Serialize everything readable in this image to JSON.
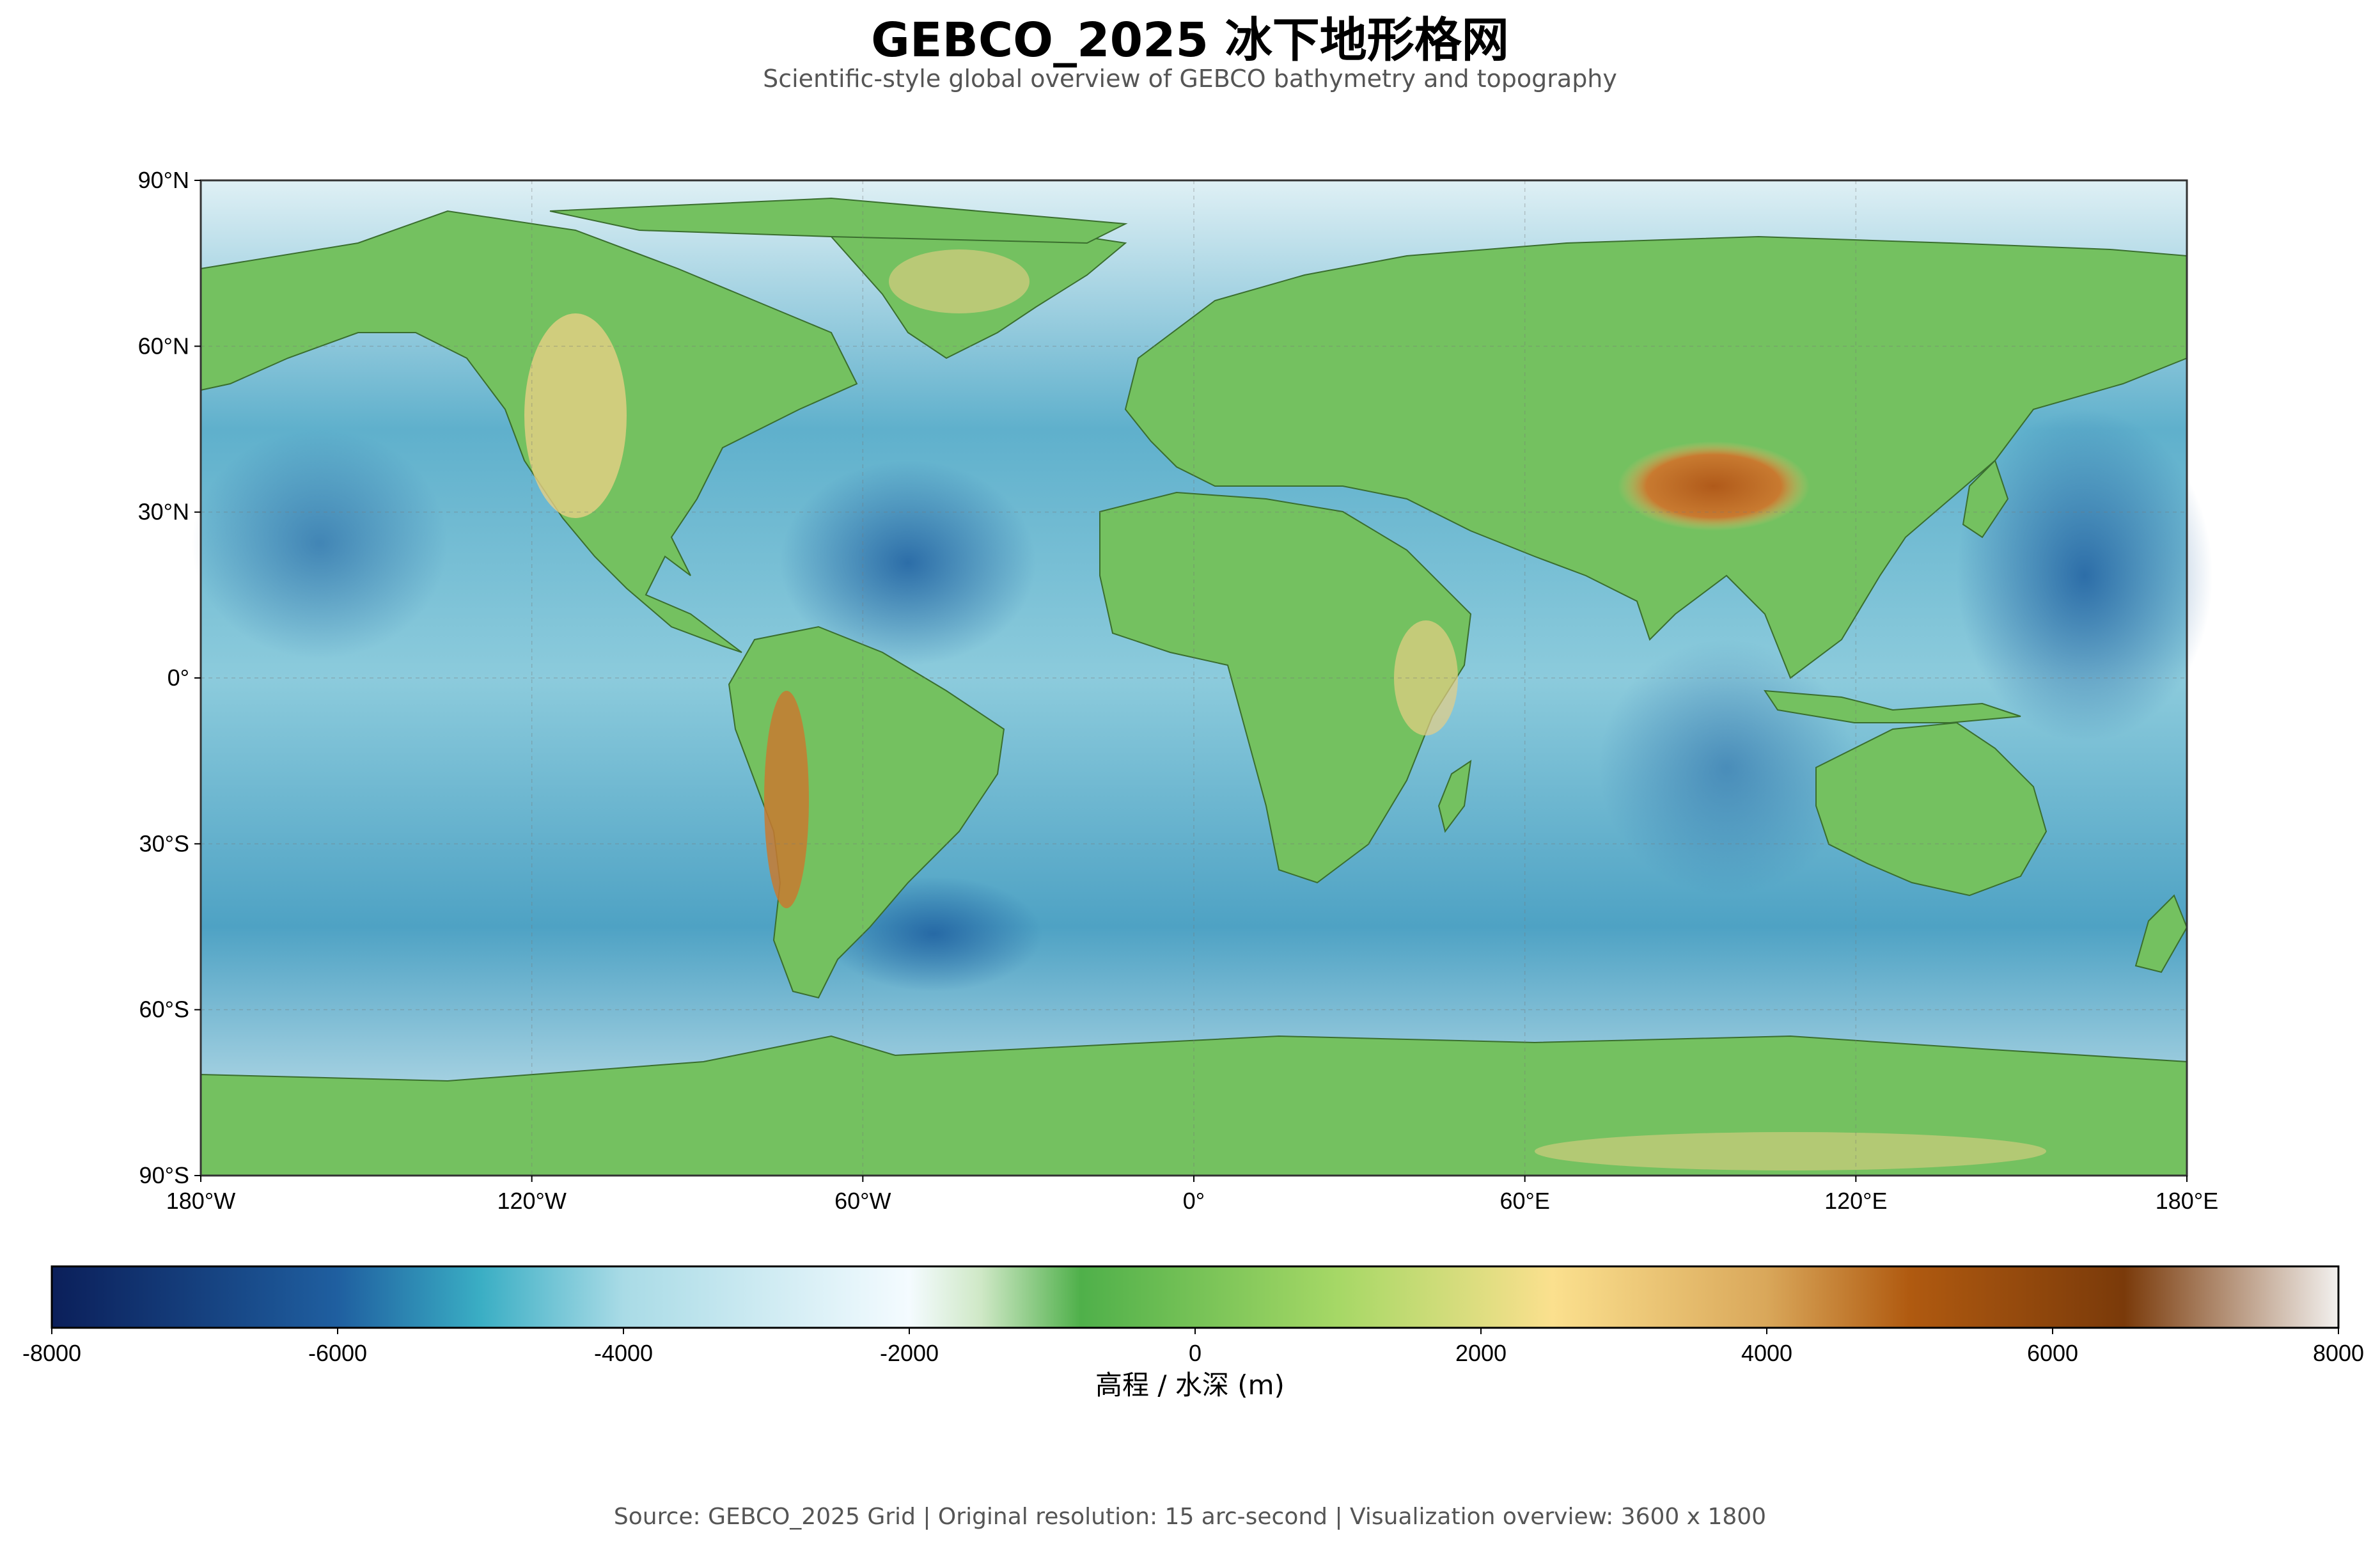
{
  "title": "GEBCO_2025 冰下地形格网",
  "subtitle": "Scientific-style global overview of GEBCO bathymetry and topography",
  "map": {
    "lat_labels": [
      "90°N",
      "60°N",
      "30°N",
      "0°",
      "30°S",
      "60°S",
      "90°S"
    ],
    "lon_labels": [
      "180°W",
      "120°W",
      "60°W",
      "0°",
      "60°E",
      "120°E",
      "180°E"
    ],
    "lat_values": [
      90,
      60,
      30,
      0,
      -30,
      -60,
      -90
    ],
    "lon_values": [
      -180,
      -120,
      -60,
      0,
      60,
      120,
      180
    ],
    "colors": {
      "ocean_deep": "#1f5fa0",
      "ocean_mid": "#3a9cc0",
      "ocean_shallow": "#dff0f5",
      "land_low": "#6cbf5a",
      "land_mid": "#f0d890",
      "land_high": "#b05a1a",
      "coastline": "#3a6e2e"
    }
  },
  "colorbar": {
    "label": "高程 / 水深 (m)",
    "tick_values": [
      -8000,
      -6000,
      -4000,
      -2000,
      0,
      2000,
      4000,
      6000,
      8000
    ],
    "tick_labels": [
      "-8000",
      "-6000",
      "-4000",
      "-2000",
      "0",
      "2000",
      "4000",
      "6000",
      "8000"
    ],
    "stops": [
      {
        "value": -8000,
        "color": "#0b1f5a"
      },
      {
        "value": -6000,
        "color": "#1f5fa0"
      },
      {
        "value": -5000,
        "color": "#3aaec4"
      },
      {
        "value": -4000,
        "color": "#a9dbe6"
      },
      {
        "value": -2000,
        "color": "#f4fbff"
      },
      {
        "value": -1500,
        "color": "#cfe8c6"
      },
      {
        "value": -800,
        "color": "#4fb04a"
      },
      {
        "value": 1000,
        "color": "#a6d866"
      },
      {
        "value": 2500,
        "color": "#fbe08e"
      },
      {
        "value": 4000,
        "color": "#d9a75a"
      },
      {
        "value": 5000,
        "color": "#b05a10"
      },
      {
        "value": 6500,
        "color": "#7a3a0a"
      },
      {
        "value": 8000,
        "color": "#f2f0ee"
      }
    ]
  },
  "source": "Source: GEBCO_2025 Grid | Original resolution: 15 arc-second | Visualization overview: 3600 x 1800"
}
